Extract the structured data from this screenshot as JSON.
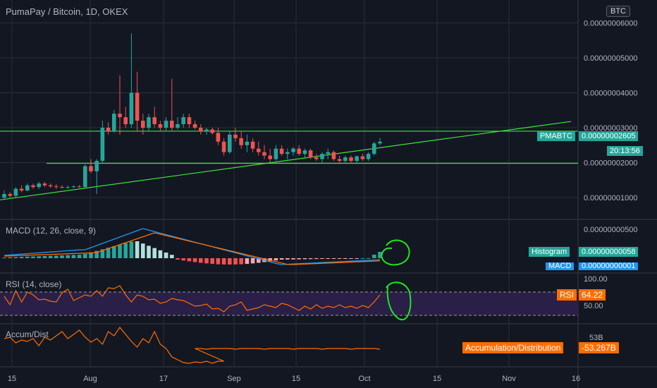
{
  "header": {
    "symbol_title": "PumaPay / Bitcoin, 1D, OKEX",
    "currency_badge": "BTC"
  },
  "colors": {
    "background": "#131722",
    "grid": "#2a2e39",
    "up": "#26a69a",
    "down": "#ef5350",
    "level_lines": "#3ae63a",
    "macd_line": "#2196f3",
    "signal_line": "#ff6d00",
    "rsi_line": "#ff6d00",
    "rsi_band": "#2a1f47",
    "ad_line": "#ff6d00",
    "annotation": "#1ee61e"
  },
  "price_labels": {
    "symbol_tag": "PMABTC",
    "last_price": "0.00000002605",
    "countdown": "20:13:56"
  },
  "macd": {
    "title": "MACD (12, 26, close, 9)",
    "hist_tag": "Histogram",
    "hist_value": "0.00000000058",
    "macd_tag": "MACD",
    "macd_value": "0.00000000001",
    "axis_label": "0.00000000500"
  },
  "rsi": {
    "title": "RSI (14, close)",
    "tag": "RSI",
    "value": "64.22",
    "axis_top": "100.00",
    "axis_mid": "50.00"
  },
  "ad": {
    "title": "Accum/Dist",
    "tag": "Accumulation/Distribution",
    "value": "-53.267B",
    "axis_label": "53B"
  },
  "chart_data": {
    "type": "candlestick",
    "title": "PumaPay / Bitcoin, 1D, OKEX",
    "x_axis_ticks": [
      "15",
      "Aug",
      "17",
      "Sep",
      "15",
      "Oct",
      "15",
      "Nov",
      "16"
    ],
    "y_axis_ticks": [
      "0.00000001000",
      "0.00000002000",
      "0.00000003000",
      "0.00000004000",
      "0.00000005000",
      "0.00000006000"
    ],
    "y_unit": "satoshi",
    "ylim": [
      7,
      60
    ],
    "horizontal_levels": [
      29.0,
      19.8
    ],
    "trendline": {
      "from": [
        0,
        9.5
      ],
      "to": [
        66,
        24.5
      ]
    },
    "candles_ohlc": [
      [
        10,
        12,
        9.5,
        11
      ],
      [
        11,
        11.5,
        10,
        10.5
      ],
      [
        10.5,
        13,
        10,
        12.5
      ],
      [
        12.5,
        13.5,
        11.5,
        12
      ],
      [
        12,
        14,
        11.8,
        13.5
      ],
      [
        13.5,
        14,
        12.5,
        13
      ],
      [
        13,
        14.5,
        12.5,
        14
      ],
      [
        14,
        14.5,
        13,
        13.5
      ],
      [
        13.5,
        14,
        12.8,
        13.2
      ],
      [
        13.2,
        13.8,
        12.5,
        13
      ],
      [
        13,
        13.5,
        12.6,
        12.8
      ],
      [
        12.8,
        13.4,
        12.5,
        13
      ],
      [
        13,
        13.5,
        12.7,
        13.2
      ],
      [
        13.2,
        13.6,
        12.8,
        13
      ],
      [
        13,
        19.5,
        12.8,
        19
      ],
      [
        19,
        21,
        17,
        17.5
      ],
      [
        17.5,
        21,
        11,
        20.5
      ],
      [
        20.5,
        32,
        20,
        30
      ],
      [
        30,
        31.5,
        28,
        29
      ],
      [
        29,
        35,
        28.5,
        34
      ],
      [
        34,
        45,
        28,
        33
      ],
      [
        33,
        36,
        30,
        31
      ],
      [
        31,
        57,
        30,
        40
      ],
      [
        40,
        46,
        29,
        32
      ],
      [
        32,
        34,
        28,
        30
      ],
      [
        30,
        34,
        29,
        33
      ],
      [
        33,
        36,
        30,
        31
      ],
      [
        31,
        32,
        29,
        30
      ],
      [
        30,
        33,
        29,
        32
      ],
      [
        32,
        44,
        29,
        30
      ],
      [
        30,
        33,
        29.5,
        31
      ],
      [
        31,
        34,
        30,
        33
      ],
      [
        33,
        34,
        30,
        31
      ],
      [
        31,
        32,
        29.5,
        30
      ],
      [
        30,
        31,
        28,
        29
      ],
      [
        29,
        30,
        28,
        29.5
      ],
      [
        29.5,
        30,
        28,
        28.5
      ],
      [
        28.5,
        30,
        25,
        26
      ],
      [
        26,
        27,
        22,
        23
      ],
      [
        23,
        29,
        22.5,
        28
      ],
      [
        28,
        30,
        26,
        27
      ],
      [
        27,
        29,
        24,
        25
      ],
      [
        25,
        28,
        23,
        26
      ],
      [
        26,
        27,
        23,
        24
      ],
      [
        24,
        26,
        22,
        23
      ],
      [
        23,
        25,
        21,
        22
      ],
      [
        22,
        24,
        20,
        21
      ],
      [
        21,
        25,
        20.5,
        24
      ],
      [
        24,
        25,
        22,
        22.5
      ],
      [
        22.5,
        24,
        21,
        23
      ],
      [
        23,
        24.5,
        22,
        24
      ],
      [
        24,
        25,
        22,
        22.5
      ],
      [
        22.5,
        24,
        21.5,
        23.5
      ],
      [
        23.5,
        24,
        21,
        21.5
      ],
      [
        21.5,
        22.5,
        20.5,
        21
      ],
      [
        21,
        23,
        20,
        22.5
      ],
      [
        22.5,
        24,
        21,
        23
      ],
      [
        23,
        23.5,
        20.5,
        21
      ],
      [
        21,
        22,
        20,
        20.5
      ],
      [
        20.5,
        22,
        20,
        21.5
      ],
      [
        21.5,
        22,
        20,
        20.5
      ],
      [
        20.5,
        22,
        20,
        21.8
      ],
      [
        21.8,
        22.5,
        20.5,
        21
      ],
      [
        21,
        23,
        20.5,
        22.5
      ],
      [
        22.5,
        26,
        22,
        25.5
      ],
      [
        25.5,
        27,
        25,
        26
      ]
    ]
  }
}
